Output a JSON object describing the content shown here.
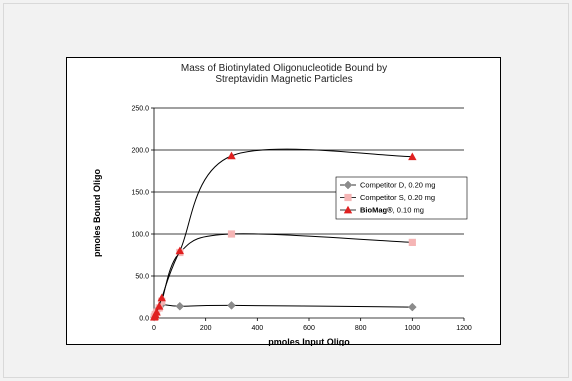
{
  "chart_data": {
    "type": "line",
    "title": [
      "Mass of Biotinylated Oligonucleotide Bound by",
      "Streptavidin Magnetic Particles"
    ],
    "xlabel": "pmoles Input Oligo",
    "ylabel": "pmoles Bound Oligo",
    "xlim": [
      0,
      1200
    ],
    "ylim": [
      0,
      250
    ],
    "xticks": [
      0,
      200,
      400,
      600,
      800,
      1000,
      1200
    ],
    "yticks": [
      0,
      50,
      100,
      150,
      200,
      250
    ],
    "xtick_labels": [
      "0",
      "200",
      "400",
      "600",
      "800",
      "1000",
      "1200"
    ],
    "ytick_labels": [
      "0.0",
      "50.0",
      "100.0",
      "150.0",
      "200.0",
      "250.0"
    ],
    "gridlines": "horizontal",
    "legend_position": "right",
    "series": [
      {
        "name": "Competitor D, 0.20 mg",
        "color": "#8c8c8c",
        "marker": "diamond",
        "x": [
          1,
          3,
          5,
          10,
          20,
          30,
          100,
          300,
          1000
        ],
        "y": [
          1,
          2,
          4,
          8,
          12,
          16,
          14,
          15,
          13
        ]
      },
      {
        "name": "Competitor S, 0.20 mg",
        "color": "#f5b5b5",
        "marker": "square",
        "x": [
          1,
          3,
          5,
          10,
          20,
          30,
          100,
          300,
          1000
        ],
        "y": [
          1,
          2,
          4,
          7,
          12,
          20,
          78,
          100,
          90
        ]
      },
      {
        "name": "BioMag®, 0.10 mg",
        "name_parts": [
          "BioMag®",
          ", 0.10 mg"
        ],
        "color": "#e02020",
        "marker": "triangle",
        "x": [
          1,
          3,
          5,
          10,
          20,
          30,
          100,
          300,
          1000
        ],
        "y": [
          1,
          2,
          4,
          7,
          14,
          24,
          80,
          193,
          192
        ]
      }
    ]
  }
}
